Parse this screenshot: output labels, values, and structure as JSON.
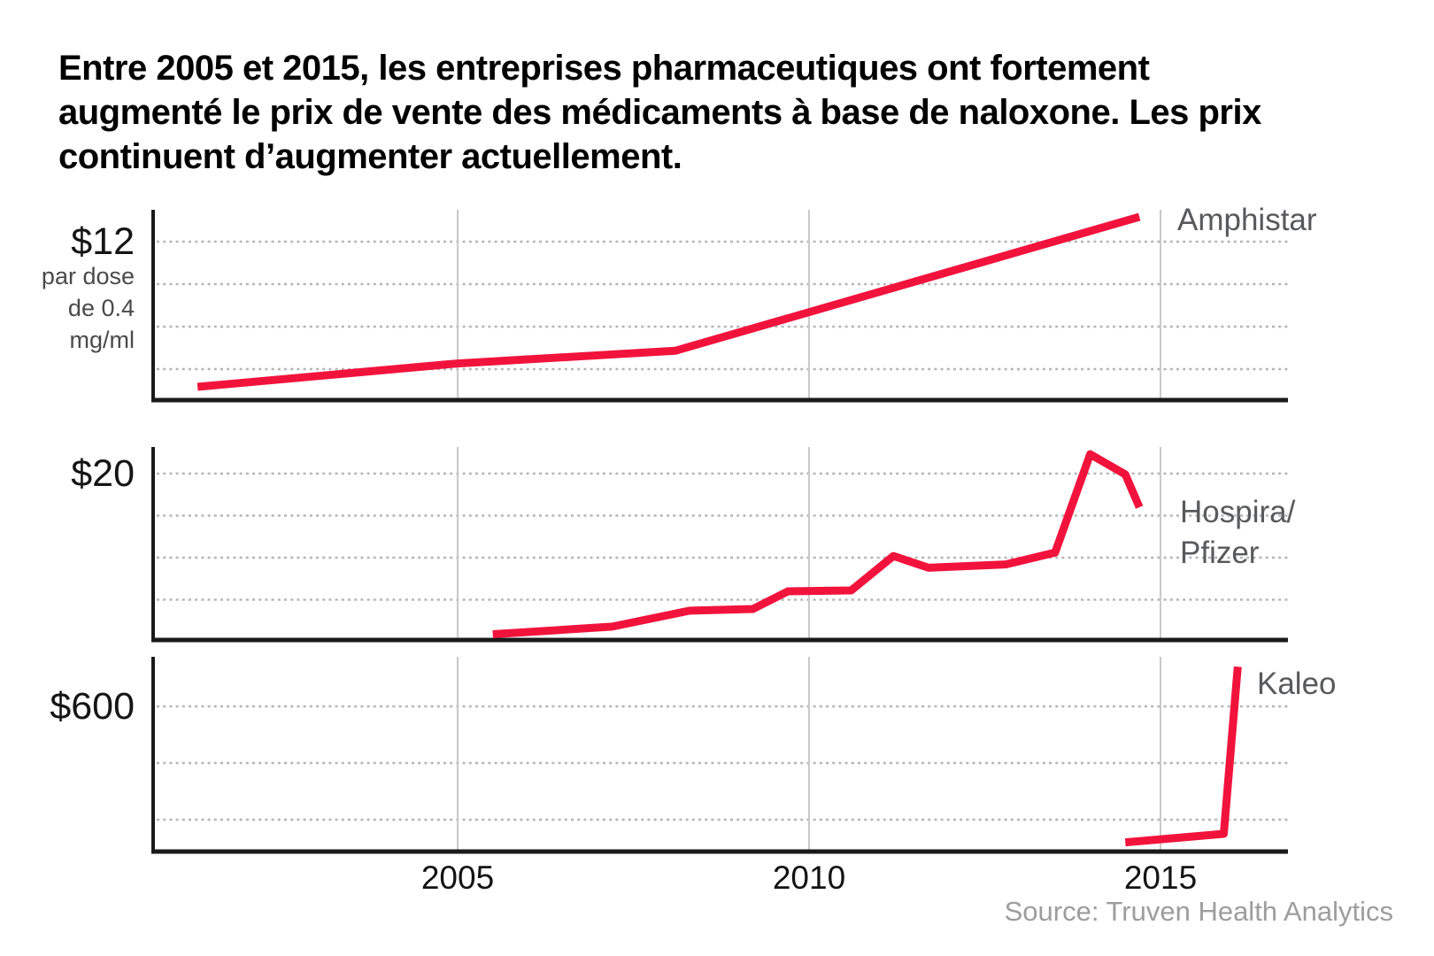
{
  "header": {
    "title_lines": [
      "Entre 2005 et 2015, les entreprises pharmaceutiques ont fortement",
      "augmenté le prix de vente des médicaments à base de naloxone. Les prix",
      "continuent d’augmenter actuellement."
    ]
  },
  "footer": {
    "source": "Source: Truven Health Analytics"
  },
  "chart_data": {
    "type": "line",
    "title": "Entre 2005 et 2015, les entreprises pharmaceutiques ont fortement augmenté le prix de vente des médicaments à base de naloxone. Les prix continuent d’augmenter actuellement.",
    "x_unit": "année",
    "x_range": [
      2000.7,
      2016.8
    ],
    "x_ticks": [
      "2005",
      "2010",
      "2015"
    ],
    "x_tick_years": [
      2005,
      2010,
      2015
    ],
    "grid": "dashed horizontal value lines, solid vertical year lines",
    "legend_position": "right of each panel line end",
    "unit_note_lines": [
      "par dose",
      "de 0.4",
      "mg/ml"
    ],
    "panels": [
      {
        "company": "Amphistar",
        "label_lines": [
          "Amphistar"
        ],
        "y_axis_label": "$12",
        "gridline_values": [
          12,
          9,
          6,
          3
        ],
        "y_unit": "$ par dose de 0.4 mg/ml",
        "series": [
          [
            2001.3,
            1.75
          ],
          [
            2005.0,
            3.4
          ],
          [
            2008.1,
            4.3
          ],
          [
            2014.7,
            13.75
          ]
        ]
      },
      {
        "company": "Hospira/Pfizer",
        "label_lines": [
          "Hospira/",
          "Pfizer"
        ],
        "y_axis_label": "$20",
        "gridline_values": [
          20,
          15,
          10,
          5
        ],
        "y_unit": "$ par dose de 0.4 mg/ml",
        "series": [
          [
            2005.5,
            0.9
          ],
          [
            2007.2,
            1.8
          ],
          [
            2008.3,
            3.7
          ],
          [
            2009.2,
            3.9
          ],
          [
            2009.7,
            6.0
          ],
          [
            2010.6,
            6.1
          ],
          [
            2011.2,
            10.2
          ],
          [
            2011.7,
            8.8
          ],
          [
            2012.8,
            9.2
          ],
          [
            2013.5,
            10.6
          ],
          [
            2014.0,
            22.3
          ],
          [
            2014.5,
            19.9
          ],
          [
            2014.7,
            16.0
          ]
        ]
      },
      {
        "company": "Kaleo",
        "label_lines": [
          "Kaleo"
        ],
        "y_axis_label": "$600",
        "gridline_values": [
          600,
          400,
          200
        ],
        "y_unit": "$ par dose de 0.4 mg/ml",
        "series": [
          [
            2014.5,
            120
          ],
          [
            2015.9,
            150
          ],
          [
            2016.1,
            740
          ]
        ]
      }
    ],
    "colors": {
      "line": "#f2133c",
      "axis": "#1a1a1a",
      "dashed_grid": "#b5b5b5",
      "year_grid": "#c9c9c9",
      "title_text": "#000000",
      "tick_text": "#131313",
      "series_label_text": "#58595b",
      "source_text": "#9d9d9d"
    }
  }
}
